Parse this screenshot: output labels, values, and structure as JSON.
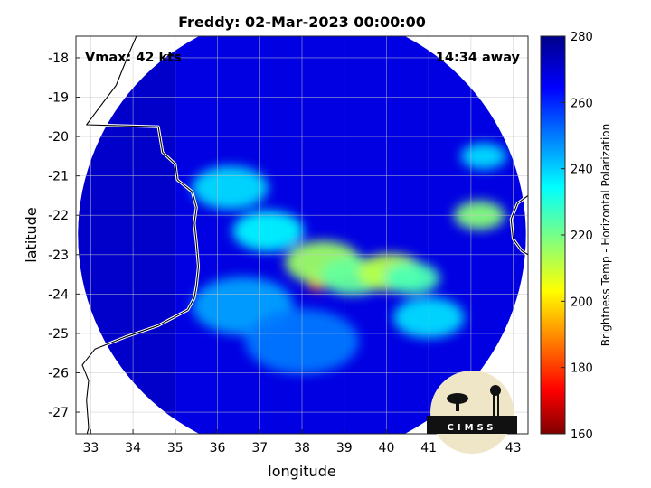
{
  "chart_data": {
    "type": "heatmap",
    "title": "Freddy: 02-Mar-2023 00:00:00",
    "xlabel": "longitude",
    "ylabel": "latitude",
    "xlim": [
      32.65,
      43.35
    ],
    "ylim": [
      -27.55,
      -17.45
    ],
    "xticks": [
      33,
      34,
      35,
      36,
      37,
      38,
      39,
      40,
      41,
      42,
      43
    ],
    "yticks": [
      -18,
      -19,
      -20,
      -21,
      -22,
      -23,
      -24,
      -25,
      -26,
      -27
    ],
    "grid": true,
    "colorbar": {
      "label": "Brightness Temp - Horizontal Polarization",
      "range": [
        160,
        280
      ],
      "ticks": [
        280,
        260,
        240,
        220,
        200,
        180,
        160
      ],
      "colormap": "jet"
    },
    "annotations": {
      "vmax": "Vmax: 42 kts",
      "time_away": "14:34 away"
    },
    "field": {
      "background_temp": 268,
      "swath_center": [
        38.0,
        -22.5
      ],
      "swath_radius_deg": 5.3,
      "features": [
        {
          "lon": 38.35,
          "lat": -23.65,
          "temp": 178
        },
        {
          "lon": 38.5,
          "lat": -23.2,
          "temp": 215
        },
        {
          "lon": 39.2,
          "lat": -23.55,
          "temp": 222
        },
        {
          "lon": 40.1,
          "lat": -23.45,
          "temp": 212
        },
        {
          "lon": 40.6,
          "lat": -23.6,
          "temp": 225
        },
        {
          "lon": 42.2,
          "lat": -22.0,
          "temp": 218
        },
        {
          "lon": 42.3,
          "lat": -20.5,
          "temp": 238
        },
        {
          "lon": 36.3,
          "lat": -21.3,
          "temp": 238
        },
        {
          "lon": 37.2,
          "lat": -22.4,
          "temp": 235
        },
        {
          "lon": 36.6,
          "lat": -24.3,
          "temp": 245
        },
        {
          "lon": 38.0,
          "lat": -25.2,
          "temp": 250
        },
        {
          "lon": 41.0,
          "lat": -24.6,
          "temp": 238
        }
      ]
    }
  },
  "logo": {
    "text": "CIMSS"
  }
}
